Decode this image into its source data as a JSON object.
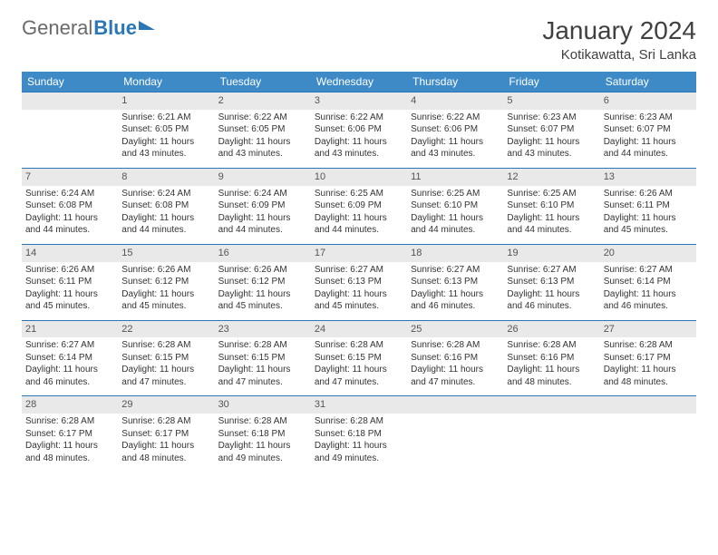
{
  "brand": {
    "part1": "General",
    "part2": "Blue"
  },
  "title": "January 2024",
  "subtitle": "Kotikawatta, Sri Lanka",
  "colors": {
    "header_bg": "#3e8ac6",
    "header_text": "#ffffff",
    "row_border": "#2b77b5",
    "daynum_bg": "#e9e9e9",
    "body_text": "#333333"
  },
  "calendar": {
    "weekdays": [
      "Sunday",
      "Monday",
      "Tuesday",
      "Wednesday",
      "Thursday",
      "Friday",
      "Saturday"
    ],
    "weeks": [
      [
        null,
        {
          "n": "1",
          "sr": "Sunrise: 6:21 AM",
          "ss": "Sunset: 6:05 PM",
          "d1": "Daylight: 11 hours",
          "d2": "and 43 minutes."
        },
        {
          "n": "2",
          "sr": "Sunrise: 6:22 AM",
          "ss": "Sunset: 6:05 PM",
          "d1": "Daylight: 11 hours",
          "d2": "and 43 minutes."
        },
        {
          "n": "3",
          "sr": "Sunrise: 6:22 AM",
          "ss": "Sunset: 6:06 PM",
          "d1": "Daylight: 11 hours",
          "d2": "and 43 minutes."
        },
        {
          "n": "4",
          "sr": "Sunrise: 6:22 AM",
          "ss": "Sunset: 6:06 PM",
          "d1": "Daylight: 11 hours",
          "d2": "and 43 minutes."
        },
        {
          "n": "5",
          "sr": "Sunrise: 6:23 AM",
          "ss": "Sunset: 6:07 PM",
          "d1": "Daylight: 11 hours",
          "d2": "and 43 minutes."
        },
        {
          "n": "6",
          "sr": "Sunrise: 6:23 AM",
          "ss": "Sunset: 6:07 PM",
          "d1": "Daylight: 11 hours",
          "d2": "and 44 minutes."
        }
      ],
      [
        {
          "n": "7",
          "sr": "Sunrise: 6:24 AM",
          "ss": "Sunset: 6:08 PM",
          "d1": "Daylight: 11 hours",
          "d2": "and 44 minutes."
        },
        {
          "n": "8",
          "sr": "Sunrise: 6:24 AM",
          "ss": "Sunset: 6:08 PM",
          "d1": "Daylight: 11 hours",
          "d2": "and 44 minutes."
        },
        {
          "n": "9",
          "sr": "Sunrise: 6:24 AM",
          "ss": "Sunset: 6:09 PM",
          "d1": "Daylight: 11 hours",
          "d2": "and 44 minutes."
        },
        {
          "n": "10",
          "sr": "Sunrise: 6:25 AM",
          "ss": "Sunset: 6:09 PM",
          "d1": "Daylight: 11 hours",
          "d2": "and 44 minutes."
        },
        {
          "n": "11",
          "sr": "Sunrise: 6:25 AM",
          "ss": "Sunset: 6:10 PM",
          "d1": "Daylight: 11 hours",
          "d2": "and 44 minutes."
        },
        {
          "n": "12",
          "sr": "Sunrise: 6:25 AM",
          "ss": "Sunset: 6:10 PM",
          "d1": "Daylight: 11 hours",
          "d2": "and 44 minutes."
        },
        {
          "n": "13",
          "sr": "Sunrise: 6:26 AM",
          "ss": "Sunset: 6:11 PM",
          "d1": "Daylight: 11 hours",
          "d2": "and 45 minutes."
        }
      ],
      [
        {
          "n": "14",
          "sr": "Sunrise: 6:26 AM",
          "ss": "Sunset: 6:11 PM",
          "d1": "Daylight: 11 hours",
          "d2": "and 45 minutes."
        },
        {
          "n": "15",
          "sr": "Sunrise: 6:26 AM",
          "ss": "Sunset: 6:12 PM",
          "d1": "Daylight: 11 hours",
          "d2": "and 45 minutes."
        },
        {
          "n": "16",
          "sr": "Sunrise: 6:26 AM",
          "ss": "Sunset: 6:12 PM",
          "d1": "Daylight: 11 hours",
          "d2": "and 45 minutes."
        },
        {
          "n": "17",
          "sr": "Sunrise: 6:27 AM",
          "ss": "Sunset: 6:13 PM",
          "d1": "Daylight: 11 hours",
          "d2": "and 45 minutes."
        },
        {
          "n": "18",
          "sr": "Sunrise: 6:27 AM",
          "ss": "Sunset: 6:13 PM",
          "d1": "Daylight: 11 hours",
          "d2": "and 46 minutes."
        },
        {
          "n": "19",
          "sr": "Sunrise: 6:27 AM",
          "ss": "Sunset: 6:13 PM",
          "d1": "Daylight: 11 hours",
          "d2": "and 46 minutes."
        },
        {
          "n": "20",
          "sr": "Sunrise: 6:27 AM",
          "ss": "Sunset: 6:14 PM",
          "d1": "Daylight: 11 hours",
          "d2": "and 46 minutes."
        }
      ],
      [
        {
          "n": "21",
          "sr": "Sunrise: 6:27 AM",
          "ss": "Sunset: 6:14 PM",
          "d1": "Daylight: 11 hours",
          "d2": "and 46 minutes."
        },
        {
          "n": "22",
          "sr": "Sunrise: 6:28 AM",
          "ss": "Sunset: 6:15 PM",
          "d1": "Daylight: 11 hours",
          "d2": "and 47 minutes."
        },
        {
          "n": "23",
          "sr": "Sunrise: 6:28 AM",
          "ss": "Sunset: 6:15 PM",
          "d1": "Daylight: 11 hours",
          "d2": "and 47 minutes."
        },
        {
          "n": "24",
          "sr": "Sunrise: 6:28 AM",
          "ss": "Sunset: 6:15 PM",
          "d1": "Daylight: 11 hours",
          "d2": "and 47 minutes."
        },
        {
          "n": "25",
          "sr": "Sunrise: 6:28 AM",
          "ss": "Sunset: 6:16 PM",
          "d1": "Daylight: 11 hours",
          "d2": "and 47 minutes."
        },
        {
          "n": "26",
          "sr": "Sunrise: 6:28 AM",
          "ss": "Sunset: 6:16 PM",
          "d1": "Daylight: 11 hours",
          "d2": "and 48 minutes."
        },
        {
          "n": "27",
          "sr": "Sunrise: 6:28 AM",
          "ss": "Sunset: 6:17 PM",
          "d1": "Daylight: 11 hours",
          "d2": "and 48 minutes."
        }
      ],
      [
        {
          "n": "28",
          "sr": "Sunrise: 6:28 AM",
          "ss": "Sunset: 6:17 PM",
          "d1": "Daylight: 11 hours",
          "d2": "and 48 minutes."
        },
        {
          "n": "29",
          "sr": "Sunrise: 6:28 AM",
          "ss": "Sunset: 6:17 PM",
          "d1": "Daylight: 11 hours",
          "d2": "and 48 minutes."
        },
        {
          "n": "30",
          "sr": "Sunrise: 6:28 AM",
          "ss": "Sunset: 6:18 PM",
          "d1": "Daylight: 11 hours",
          "d2": "and 49 minutes."
        },
        {
          "n": "31",
          "sr": "Sunrise: 6:28 AM",
          "ss": "Sunset: 6:18 PM",
          "d1": "Daylight: 11 hours",
          "d2": "and 49 minutes."
        },
        null,
        null,
        null
      ]
    ]
  }
}
